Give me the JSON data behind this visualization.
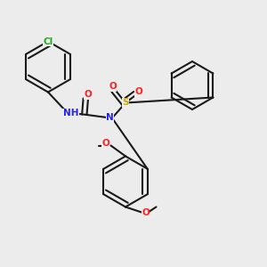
{
  "bg_color": "#ececec",
  "bond_color": "#1a1a1a",
  "bond_width": 1.5,
  "atom_colors": {
    "N": "#2020ff",
    "O": "#ff2020",
    "S": "#ccaa00",
    "Cl": "#22aa22",
    "C": "#1a1a1a",
    "H": "#808080"
  },
  "font_size": 7.5
}
